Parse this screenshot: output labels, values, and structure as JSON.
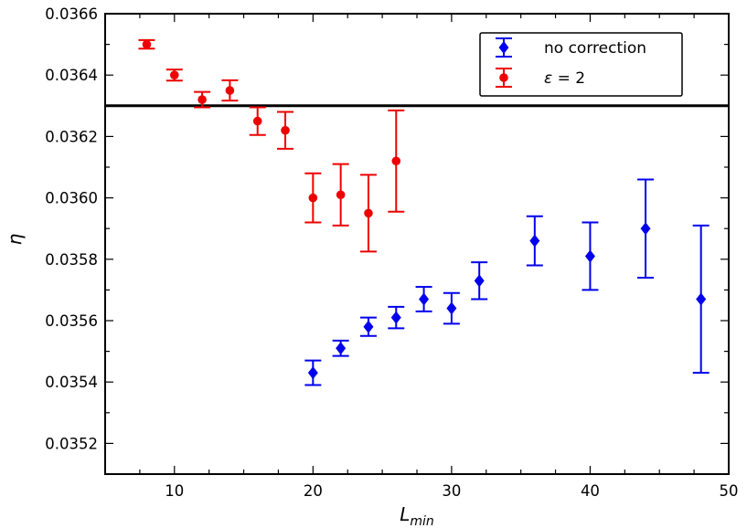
{
  "chart_data": {
    "type": "scatter",
    "title": "",
    "xlabel": "L",
    "xlabel_sub": "min",
    "ylabel": "η",
    "xlim": [
      5,
      50
    ],
    "ylim": [
      0.0351,
      0.0366
    ],
    "xticks": [
      10,
      20,
      30,
      40,
      50
    ],
    "xtick_labels": [
      "10",
      "20",
      "30",
      "40",
      "50"
    ],
    "yticks": [
      0.0352,
      0.0354,
      0.0356,
      0.0358,
      0.036,
      0.0362,
      0.0364,
      0.0366
    ],
    "ytick_labels": [
      "0.0352",
      "0.0354",
      "0.0356",
      "0.0358",
      "0.0360",
      "0.0362",
      "0.0364",
      "0.0366"
    ],
    "grid": false,
    "legend_position": "top-right",
    "reference_line": {
      "y": 0.0363,
      "color": "#000000"
    },
    "series": [
      {
        "name": "no correction",
        "color": "#0000ee",
        "marker": "diamond",
        "x": [
          20,
          22,
          24,
          26,
          28,
          30,
          32,
          36,
          40,
          44,
          48
        ],
        "y": [
          0.03543,
          0.03551,
          0.03558,
          0.03561,
          0.03567,
          0.03564,
          0.03573,
          0.03586,
          0.03581,
          0.0359,
          0.03567
        ],
        "err": [
          4e-05,
          2.5e-05,
          3e-05,
          3.5e-05,
          4e-05,
          5e-05,
          6e-05,
          8e-05,
          0.00011,
          0.00016,
          0.00024
        ]
      },
      {
        "name": "ε = 2",
        "name_parts": {
          "symbol": "ε",
          "rest": " = 2"
        },
        "color": "#ee0000",
        "marker": "circle",
        "x": [
          8,
          10,
          12,
          14,
          16,
          18,
          20,
          22,
          24,
          26
        ],
        "y": [
          0.0365,
          0.0364,
          0.03632,
          0.03635,
          0.03625,
          0.03622,
          0.036,
          0.03601,
          0.03595,
          0.03612
        ],
        "err": [
          1.4e-05,
          1.8e-05,
          2.5e-05,
          3.3e-05,
          4.5e-05,
          6e-05,
          8e-05,
          0.0001,
          0.000125,
          0.000165
        ]
      }
    ]
  }
}
